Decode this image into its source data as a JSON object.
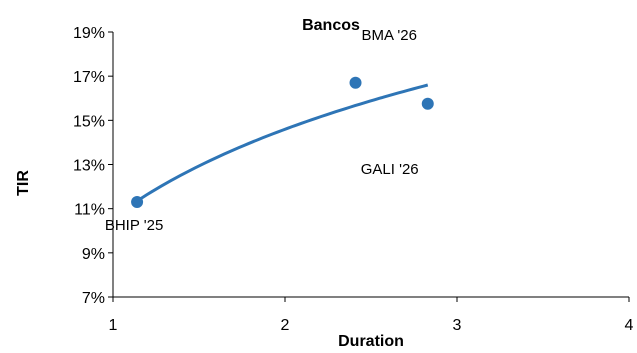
{
  "chart_data": {
    "type": "scatter",
    "title": "Bancos",
    "xlabel": "Duration",
    "ylabel": "TIR",
    "xlim": [
      1,
      4
    ],
    "ylim": [
      7,
      19
    ],
    "x_ticks": [
      "1",
      "2",
      "3",
      "4"
    ],
    "y_ticks": [
      "7%",
      "9%",
      "11%",
      "13%",
      "15%",
      "17%",
      "19%"
    ],
    "grid": false,
    "legend": "none",
    "marker_color": "#2e75b6",
    "trendline_color": "#2e75b6",
    "points": [
      {
        "label": "BHIP '25",
        "x": 1.14,
        "y": 11.3
      },
      {
        "label": "BMA '26",
        "x": 2.41,
        "y": 16.7
      },
      {
        "label": "GALI '26",
        "x": 2.83,
        "y": 15.75
      }
    ],
    "trendline": {
      "type": "logarithmic",
      "x_range": [
        1.14,
        2.83
      ],
      "y_range": [
        11.35,
        16.6
      ]
    }
  }
}
